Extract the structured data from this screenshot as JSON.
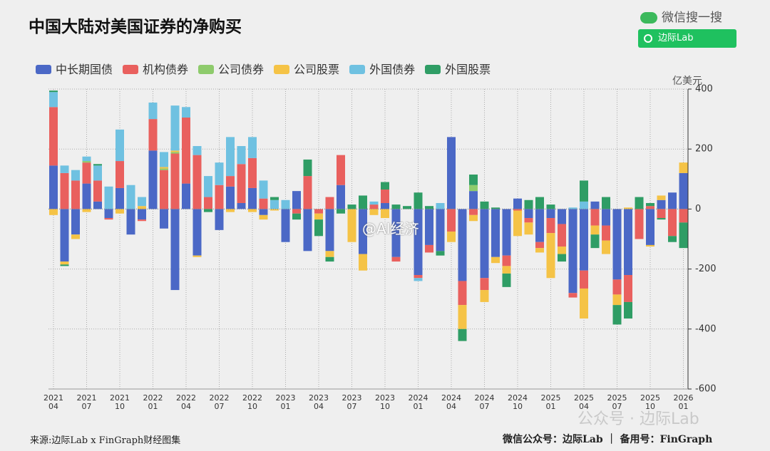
{
  "header": {
    "search_label": "微信搜一搜",
    "search_text": "边际Lab"
  },
  "watermarks": [
    "@AI经济",
    "公众号 · 边际Lab"
  ],
  "footer": {
    "source": "来源:边际Lab x FinGraph财经图集",
    "right": "微信公众号：边际Lab ｜ 备用号：FinGraph"
  },
  "chart_data": {
    "type": "stacked_bar",
    "title": "中国大陆对美国证券的净购买",
    "unit": "亿美元",
    "categories": [
      "2021\n04",
      null,
      null,
      "2021\n07",
      null,
      null,
      "2021\n10",
      null,
      null,
      "2022\n01",
      null,
      null,
      "2022\n04",
      null,
      null,
      "2022\n07",
      null,
      null,
      "2022\n10",
      null,
      null,
      "2023\n01",
      null,
      null,
      "2023\n04",
      null,
      null,
      "2023\n07",
      null,
      null,
      "2023\n10",
      null,
      null,
      "2024\n01",
      null,
      null,
      "2024\n04",
      null,
      null,
      "2024\n07",
      null,
      null,
      "2024\n10",
      null,
      null,
      "2025\n01",
      null,
      null,
      "2025\n04",
      null,
      null,
      "2025\n07",
      null,
      null,
      "2025\n10",
      null,
      null,
      "2026\n01"
    ],
    "ylim": [
      -600,
      400
    ],
    "yticks": [
      400,
      200,
      0,
      -200,
      -400,
      -600
    ],
    "grid": true,
    "series": [
      {
        "name": "中长期国债",
        "color": "#4b68c6",
        "values": [
          145,
          -175,
          -85,
          85,
          25,
          -30,
          70,
          -85,
          -35,
          195,
          -65,
          -270,
          85,
          -155,
          0,
          -70,
          75,
          20,
          70,
          -20,
          0,
          -110,
          60,
          -140,
          0,
          -140,
          80,
          0,
          -150,
          0,
          20,
          -160,
          0,
          -220,
          -120,
          -140,
          240,
          -240,
          60,
          -230,
          -160,
          -155,
          35,
          -30,
          -110,
          -30,
          -50,
          -280,
          -205,
          25,
          -55,
          -235,
          -220,
          0,
          -120,
          30,
          55,
          120
        ]
      },
      {
        "name": "机构债券",
        "color": "#e9605e",
        "values": [
          195,
          120,
          95,
          70,
          70,
          -5,
          90,
          0,
          -5,
          105,
          130,
          185,
          220,
          180,
          40,
          80,
          35,
          130,
          100,
          35,
          0,
          0,
          -15,
          110,
          -15,
          40,
          100,
          0,
          0,
          15,
          45,
          -15,
          0,
          -10,
          -25,
          0,
          -75,
          -80,
          -20,
          -40,
          0,
          -35,
          -5,
          -15,
          -20,
          -50,
          -75,
          -15,
          -60,
          -55,
          -50,
          -50,
          -90,
          -100,
          10,
          -30,
          -90,
          -45
        ]
      },
      {
        "name": "公司债券",
        "color": "#8ecb6c",
        "values": [
          0,
          0,
          0,
          5,
          0,
          0,
          0,
          0,
          0,
          0,
          5,
          5,
          0,
          0,
          0,
          0,
          0,
          0,
          0,
          0,
          0,
          0,
          0,
          0,
          0,
          0,
          0,
          0,
          0,
          0,
          0,
          0,
          0,
          0,
          0,
          0,
          0,
          0,
          20,
          0,
          0,
          0,
          0,
          0,
          0,
          0,
          0,
          0,
          0,
          0,
          0,
          0,
          0,
          0,
          0,
          0,
          0,
          0
        ]
      },
      {
        "name": "公司股票",
        "color": "#f5c346",
        "values": [
          -20,
          -10,
          -15,
          -10,
          0,
          0,
          -15,
          0,
          10,
          0,
          5,
          5,
          0,
          -5,
          0,
          0,
          -10,
          0,
          -10,
          -15,
          -5,
          0,
          0,
          0,
          -20,
          -20,
          0,
          -110,
          -55,
          -20,
          -30,
          0,
          0,
          0,
          0,
          0,
          -35,
          -80,
          -20,
          -40,
          -20,
          -25,
          -85,
          -40,
          -15,
          -150,
          -25,
          0,
          -100,
          -30,
          -45,
          -35,
          5,
          0,
          -5,
          15,
          0,
          35
        ]
      },
      {
        "name": "外国债券",
        "color": "#6fc1e1",
        "values": [
          50,
          25,
          35,
          15,
          50,
          75,
          105,
          80,
          30,
          55,
          50,
          150,
          35,
          30,
          70,
          75,
          130,
          60,
          70,
          60,
          30,
          30,
          0,
          0,
          0,
          0,
          0,
          0,
          0,
          10,
          0,
          0,
          0,
          -10,
          0,
          20,
          0,
          0,
          0,
          0,
          0,
          0,
          0,
          0,
          0,
          0,
          0,
          5,
          25,
          0,
          0,
          0,
          0,
          0,
          0,
          0,
          0,
          0
        ]
      },
      {
        "name": "外国股票",
        "color": "#2f9d65",
        "values": [
          5,
          -5,
          0,
          0,
          5,
          0,
          0,
          0,
          0,
          0,
          0,
          0,
          0,
          0,
          -10,
          0,
          0,
          0,
          0,
          0,
          10,
          0,
          -20,
          55,
          -55,
          -15,
          -15,
          15,
          45,
          0,
          25,
          15,
          10,
          55,
          10,
          -15,
          0,
          -40,
          35,
          25,
          5,
          -45,
          0,
          30,
          40,
          15,
          -25,
          0,
          70,
          -45,
          40,
          -65,
          -55,
          40,
          10,
          -5,
          -20,
          -85
        ]
      }
    ]
  }
}
